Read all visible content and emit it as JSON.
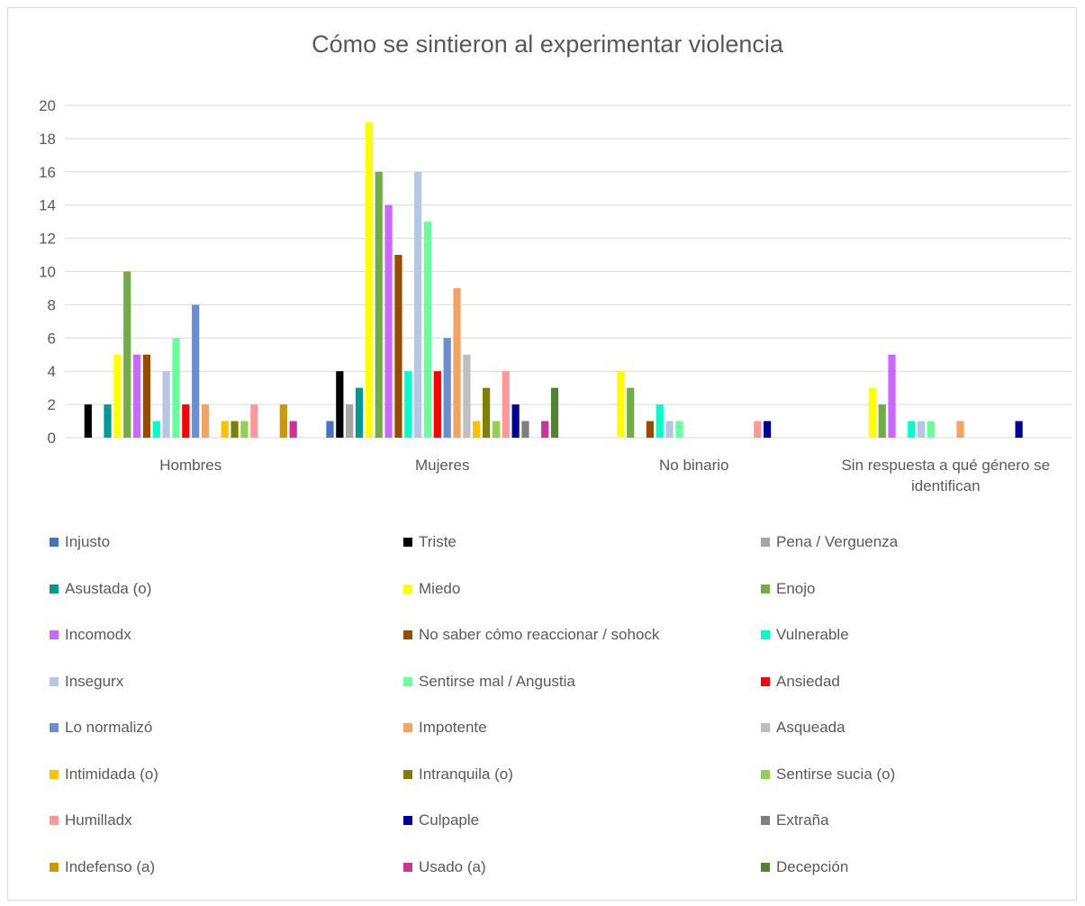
{
  "chart_data": {
    "type": "bar",
    "title": "Cómo se sintieron al experimentar violencia",
    "categories": [
      "Hombres",
      "Mujeres",
      "No binario",
      "Sin respuesta a qué género se identifican"
    ],
    "category_label_lines": [
      [
        "Hombres"
      ],
      [
        "Mujeres"
      ],
      [
        "No binario"
      ],
      [
        "Sin respuesta a qué género se",
        "identifican"
      ]
    ],
    "ylim": [
      0,
      20
    ],
    "yticks": [
      "0",
      "2",
      "4",
      "6",
      "8",
      "10",
      "12",
      "14",
      "16",
      "18",
      "20"
    ],
    "grid": true,
    "legend_position": "bottom",
    "series": [
      {
        "name": "Injusto",
        "color": "#4472C4",
        "values": [
          0,
          1,
          0,
          0
        ]
      },
      {
        "name": "Triste",
        "color": "#000000",
        "values": [
          2,
          4,
          0,
          0
        ]
      },
      {
        "name": "Pena / Verguenza",
        "color": "#A5A5A5",
        "values": [
          0,
          2,
          0,
          0
        ]
      },
      {
        "name": "Asustada (o)",
        "color": "#009999",
        "values": [
          2,
          3,
          0,
          0
        ]
      },
      {
        "name": "Miedo",
        "color": "#FFFF00",
        "values": [
          5,
          19,
          4,
          3
        ]
      },
      {
        "name": "Enojo",
        "color": "#70AD47",
        "values": [
          10,
          16,
          3,
          2
        ]
      },
      {
        "name": "Incomodx",
        "color": "#CC66FF",
        "values": [
          5,
          14,
          0,
          5
        ]
      },
      {
        "name": "No saber cómo reaccionar / sohock",
        "color": "#994C00",
        "values": [
          5,
          11,
          1,
          0
        ]
      },
      {
        "name": "Vulnerable",
        "color": "#00FFCC",
        "values": [
          1,
          4,
          2,
          1
        ]
      },
      {
        "name": "Insegurx",
        "color": "#B4C7E7",
        "values": [
          4,
          16,
          1,
          1
        ]
      },
      {
        "name": "Sentirse mal / Angustia",
        "color": "#66FF99",
        "values": [
          6,
          13,
          1,
          1
        ]
      },
      {
        "name": "Ansiedad",
        "color": "#FF0000",
        "values": [
          2,
          4,
          0,
          0
        ]
      },
      {
        "name": "Lo normalizó",
        "color": "#6A8ED6",
        "values": [
          8,
          6,
          0,
          0
        ]
      },
      {
        "name": "Impotente",
        "color": "#F4A460",
        "values": [
          2,
          9,
          0,
          1
        ]
      },
      {
        "name": "Asqueada",
        "color": "#BFBFBF",
        "values": [
          0,
          5,
          0,
          0
        ]
      },
      {
        "name": "Intimidada (o)",
        "color": "#FFC000",
        "values": [
          1,
          1,
          0,
          0
        ]
      },
      {
        "name": "Intranquila (o)",
        "color": "#808000",
        "values": [
          1,
          3,
          0,
          0
        ]
      },
      {
        "name": "Sentirse sucia (o)",
        "color": "#92D050",
        "values": [
          1,
          1,
          0,
          0
        ]
      },
      {
        "name": "Humilladx",
        "color": "#FF9999",
        "values": [
          2,
          4,
          1,
          0
        ]
      },
      {
        "name": "Culpaple",
        "color": "#000099",
        "values": [
          0,
          2,
          1,
          1
        ]
      },
      {
        "name": "Extraña",
        "color": "#7F7F7F",
        "values": [
          0,
          1,
          0,
          0
        ]
      },
      {
        "name": "Indefenso (a)",
        "color": "#CC9900",
        "values": [
          2,
          0,
          0,
          0
        ]
      },
      {
        "name": "Usado (a)",
        "color": "#CC3399",
        "values": [
          1,
          1,
          0,
          0
        ]
      },
      {
        "name": "Decepción",
        "color": "#548235",
        "values": [
          0,
          3,
          0,
          0
        ]
      }
    ]
  }
}
